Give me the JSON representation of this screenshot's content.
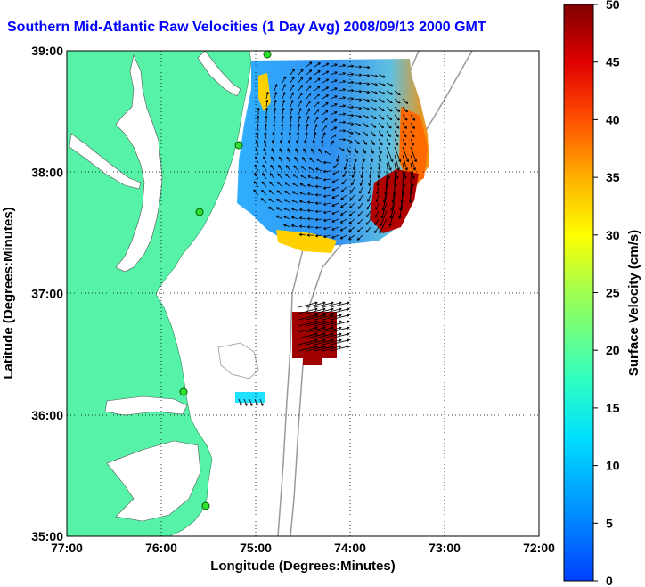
{
  "title": "Southern Mid-Atlantic Raw Velocities (1 Day Avg) 2008/09/13 2000 GMT",
  "map": {
    "xlabel": "Longitude (Degrees:Minutes)",
    "ylabel": "Latitude (Degrees:Minutes)",
    "x_ticks": [
      "77:00",
      "76:00",
      "75:00",
      "74:00",
      "73:00",
      "72:00"
    ],
    "y_ticks": [
      "39:00",
      "38:00",
      "37:00",
      "36:00",
      "35:00"
    ],
    "lon_range": [
      -77,
      -72
    ],
    "lat_range": [
      35,
      39
    ],
    "land_color": "#55f2a8",
    "grid": "dotted"
  },
  "colorbar": {
    "label": "Surface Velocity (cm/s)",
    "ticks": [
      "0",
      "5",
      "10",
      "15",
      "20",
      "25",
      "30",
      "35",
      "40",
      "45",
      "50"
    ],
    "range": [
      0,
      50
    ],
    "colormap": "jet"
  }
}
